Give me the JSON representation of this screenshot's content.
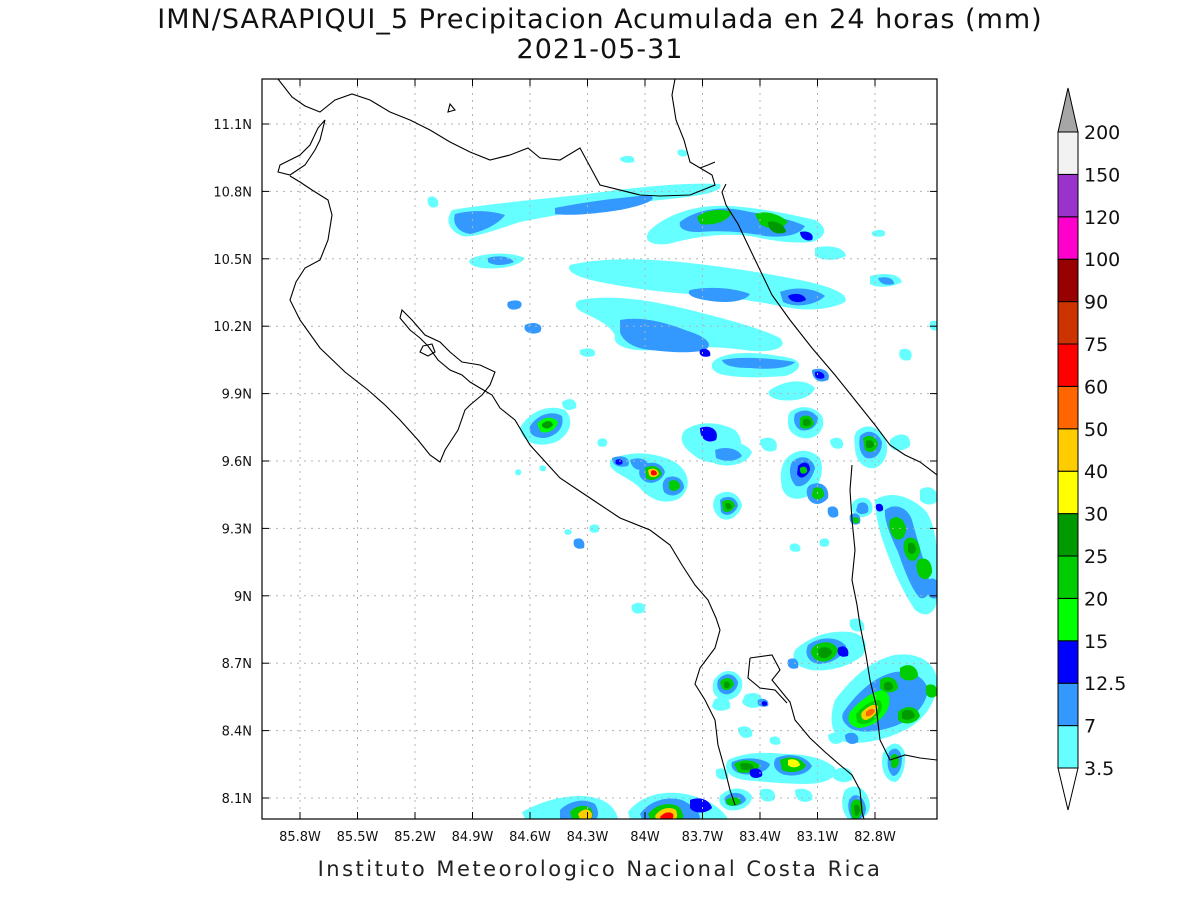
{
  "title": {
    "line1": "IMN/SARAPIQUI_5 Precipitacion Acumulada en 24 horas (mm)",
    "line2": "2021-05-31"
  },
  "footer": "Instituto Meteorologico Nacional Costa Rica",
  "map": {
    "lon_range": [
      -86.15,
      -82.6
    ],
    "lat_range": [
      8.0,
      11.3
    ],
    "lon_ticks": [
      "85.8W",
      "85.5W",
      "85.2W",
      "84.9W",
      "84.6W",
      "84.3W",
      "84W",
      "83.7W",
      "83.4W",
      "83.1W",
      "82.8W"
    ],
    "lat_ticks": [
      "11.1N",
      "10.8N",
      "10.5N",
      "10.2N",
      "9.9N",
      "9.6N",
      "9.3N",
      "9N",
      "8.7N",
      "8.4N",
      "8.1N"
    ],
    "grid": true
  },
  "colorbar": {
    "labels": [
      "3.5",
      "7",
      "12.5",
      "15",
      "20",
      "25",
      "30",
      "40",
      "50",
      "60",
      "75",
      "90",
      "100",
      "120",
      "150",
      "200"
    ],
    "colors": [
      "#66ffff",
      "#3399ff",
      "#0000ff",
      "#00ff00",
      "#00cc00",
      "#009900",
      "#ffff00",
      "#ffcc00",
      "#ff6600",
      "#ff0000",
      "#cc3300",
      "#990000",
      "#ff00cc",
      "#9933cc",
      "#f2f2f2"
    ],
    "over_color": "#a6a6a6",
    "under_color": "#ffffff"
  }
}
